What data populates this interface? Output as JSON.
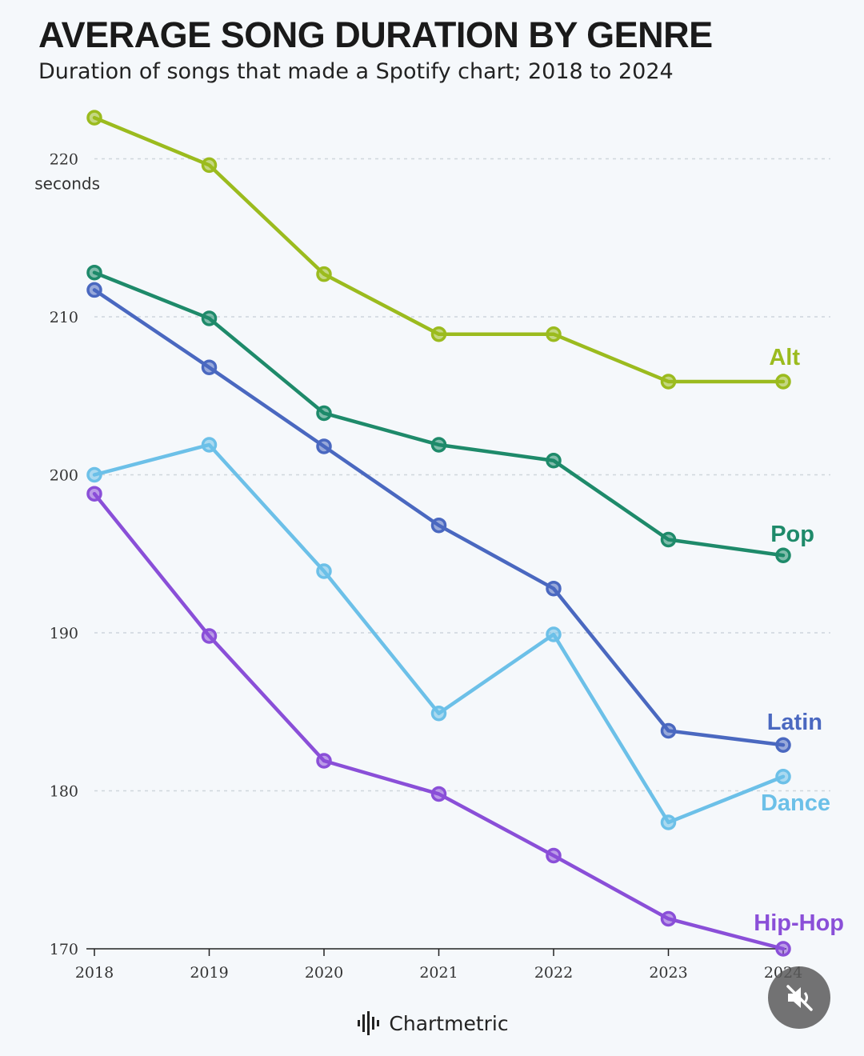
{
  "header": {
    "title": "AVERAGE SONG DURATION BY GENRE",
    "subtitle": "Duration of songs that made a Spotify chart; 2018 to 2024"
  },
  "footer": {
    "brand": "Chartmetric",
    "brand_icon": "waveform-icon"
  },
  "controls": {
    "mute_icon": "muted-speaker-icon"
  },
  "chart_data": {
    "type": "line",
    "title": "AVERAGE SONG DURATION BY GENRE",
    "subtitle": "Duration of songs that made a Spotify chart; 2018 to 2024",
    "xlabel": "",
    "ylabel": "seconds",
    "x": [
      "2018",
      "2019",
      "2020",
      "2021",
      "2022",
      "2023",
      "2024"
    ],
    "ylim": [
      170,
      222
    ],
    "yticks": [
      170,
      180,
      190,
      200,
      210,
      220
    ],
    "top_tick_unit": "seconds",
    "grid": true,
    "legend": "direct labels at line ends (right)",
    "series": [
      {
        "name": "Alt",
        "color": "#9bbb1e",
        "values": [
          222.6,
          219.6,
          212.7,
          208.9,
          208.9,
          205.9,
          205.9
        ]
      },
      {
        "name": "Pop",
        "color": "#1e8a6a",
        "values": [
          212.8,
          209.9,
          203.9,
          201.9,
          200.9,
          195.9,
          194.9
        ]
      },
      {
        "name": "Latin",
        "color": "#4a68c0",
        "values": [
          211.7,
          206.8,
          201.8,
          196.8,
          192.8,
          183.8,
          182.9
        ]
      },
      {
        "name": "Dance",
        "color": "#6cc0e8",
        "values": [
          200.0,
          201.9,
          193.9,
          184.9,
          189.9,
          178.0,
          180.9
        ]
      },
      {
        "name": "Hip-Hop",
        "color": "#8a4fd8",
        "values": [
          198.8,
          189.8,
          181.9,
          179.8,
          175.9,
          171.9,
          170.0
        ]
      }
    ]
  }
}
